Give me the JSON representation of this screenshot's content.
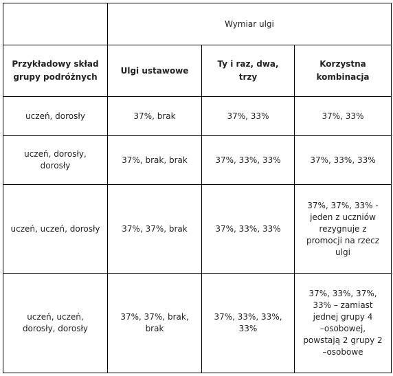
{
  "header": {
    "group_caption": "Wymiar ulgi",
    "columns": [
      [
        "Przykładowy skład",
        "grupy podróżnych"
      ],
      [
        "Ulgi ustawowe"
      ],
      [
        "Ty i raz, dwa, trzy"
      ],
      [
        "Korzystna",
        "kombinacja"
      ]
    ]
  },
  "rows": [
    {
      "composition": [
        "uczeń, dorosły"
      ],
      "statutory": [
        "37%, brak"
      ],
      "promo": [
        "37%, 33%"
      ],
      "best": [
        "37%, 33%"
      ]
    },
    {
      "composition": [
        "uczeń, dorosły,",
        "dorosły"
      ],
      "statutory": [
        "37%, brak, brak"
      ],
      "promo": [
        "37%, 33%, 33%"
      ],
      "best": [
        "37%, 33%, 33%"
      ]
    },
    {
      "composition": [
        "uczeń, uczeń, dorosły"
      ],
      "statutory": [
        "37%, 37%, brak"
      ],
      "promo": [
        "37%, 33%, 33%"
      ],
      "best": [
        "37%, 37%, 33% -",
        "jeden z uczniów",
        "rezygnuje z",
        "promocji na rzecz",
        "ulgi"
      ]
    },
    {
      "composition": [
        "uczeń, uczeń,",
        "dorosły, dorosły"
      ],
      "statutory": [
        "37%, 37%, brak,",
        "brak"
      ],
      "promo": [
        "37%, 33%, 33%,",
        "33%"
      ],
      "best": [
        "37%, 33%, 37%,",
        "33% – zamiast",
        "jednej grupy 4",
        "–osobowej,",
        "powstają 2 grupy 2",
        "–osobowe"
      ]
    }
  ]
}
